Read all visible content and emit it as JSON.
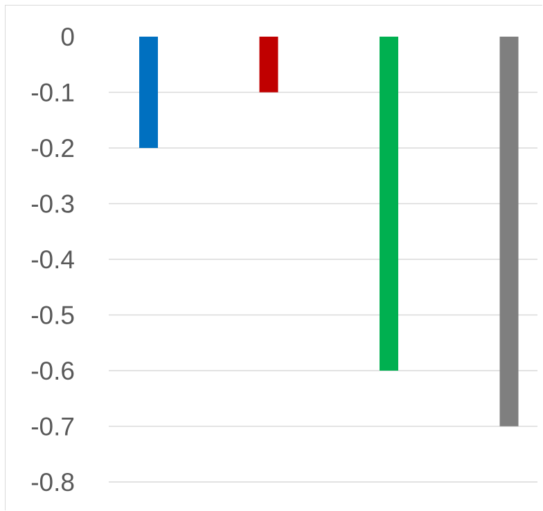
{
  "chart_data": {
    "type": "bar",
    "categories": [
      "",
      "",
      "",
      ""
    ],
    "values": [
      -0.2,
      -0.1,
      -0.6,
      -0.7
    ],
    "colors": [
      "#0070c0",
      "#c00000",
      "#00b050",
      "#7f7f7f"
    ],
    "title": "",
    "xlabel": "",
    "ylabel": "",
    "ylim": [
      -0.8,
      0
    ],
    "yticks": [
      0,
      -0.1,
      -0.2,
      -0.3,
      -0.4,
      -0.5,
      -0.6,
      -0.7,
      -0.8
    ],
    "ytick_labels": [
      "0",
      "-0.1",
      "-0.2",
      "-0.3",
      "-0.4",
      "-0.5",
      "-0.6",
      "-0.7",
      "-0.8"
    ],
    "grid": true,
    "legend": "none"
  }
}
